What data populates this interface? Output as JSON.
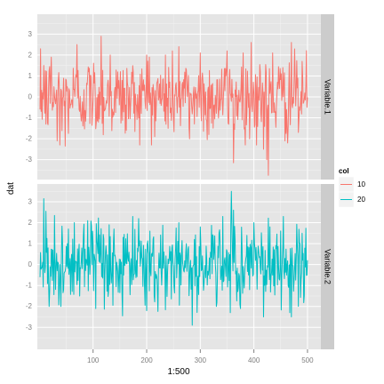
{
  "chart_data": {
    "type": "line",
    "xlabel": "1:500",
    "ylabel": "dat",
    "xlim": [
      -4,
      525
    ],
    "x_ticks": [
      100,
      200,
      300,
      400,
      500
    ],
    "y_ticks": [
      -3,
      -2,
      -1,
      0,
      1,
      2,
      3
    ],
    "grid": true,
    "legend_position": "right",
    "legend": {
      "title": "col",
      "entries": [
        {
          "label": "10",
          "color": "#F8766D"
        },
        {
          "label": "20",
          "color": "#00BFC4"
        }
      ]
    },
    "panels": [
      {
        "strip_label": "Variable.1",
        "ylim": [
          -3.95,
          3.95
        ],
        "series": {
          "color": "#F8766D",
          "x_range": [
            1,
            500
          ],
          "noise_sd": 0.95,
          "points": [
            [
              1,
              -0.6
            ],
            [
              8,
              1.5
            ],
            [
              12,
              -1.3
            ],
            [
              22,
              1.9
            ],
            [
              33,
              -2.1
            ],
            [
              38,
              -2.3
            ],
            [
              48,
              -2.35
            ],
            [
              70,
              2.5
            ],
            [
              92,
              1.2
            ],
            [
              115,
              2.9
            ],
            [
              132,
              2.0
            ],
            [
              162,
              -1.6
            ],
            [
              200,
              2.0
            ],
            [
              205,
              1.9
            ],
            [
              215,
              -1.9
            ],
            [
              235,
              2.0
            ],
            [
              240,
              -1.5
            ],
            [
              260,
              2.4
            ],
            [
              280,
              -2.0
            ],
            [
              300,
              2.1
            ],
            [
              316,
              -1.8
            ],
            [
              350,
              2.2
            ],
            [
              362,
              -3.15
            ],
            [
              380,
              2.1
            ],
            [
              392,
              -2.0
            ],
            [
              395,
              2.6
            ],
            [
              418,
              -2.5
            ],
            [
              424,
              -3.0
            ],
            [
              427,
              -3.75
            ],
            [
              435,
              2.1
            ],
            [
              458,
              -2.1
            ],
            [
              470,
              2.6
            ],
            [
              483,
              -1.7
            ],
            [
              490,
              1.7
            ],
            [
              499,
              -0.5
            ]
          ]
        }
      },
      {
        "strip_label": "Variable.2",
        "ylim": [
          -4.05,
          3.85
        ],
        "series": {
          "color": "#00BFC4",
          "x_range": [
            1,
            500
          ],
          "noise_sd": 0.95,
          "points": [
            [
              1,
              -0.6
            ],
            [
              8,
              3.15
            ],
            [
              12,
              2.55
            ],
            [
              18,
              -2.0
            ],
            [
              28,
              2.35
            ],
            [
              40,
              -2.0
            ],
            [
              65,
              2.0
            ],
            [
              75,
              -1.5
            ],
            [
              90,
              2.1
            ],
            [
              105,
              -2.1
            ],
            [
              130,
              1.9
            ],
            [
              155,
              -2.45
            ],
            [
              185,
              2.2
            ],
            [
              200,
              -2.2
            ],
            [
              260,
              2.0
            ],
            [
              285,
              -2.9
            ],
            [
              300,
              1.8
            ],
            [
              330,
              -2.0
            ],
            [
              358,
              3.5
            ],
            [
              362,
              2.6
            ],
            [
              375,
              -2.1
            ],
            [
              400,
              2.0
            ],
            [
              418,
              -2.5
            ],
            [
              430,
              1.8
            ],
            [
              455,
              2.3
            ],
            [
              470,
              -2.5
            ],
            [
              490,
              1.5
            ],
            [
              499,
              -0.5
            ]
          ]
        }
      }
    ]
  }
}
